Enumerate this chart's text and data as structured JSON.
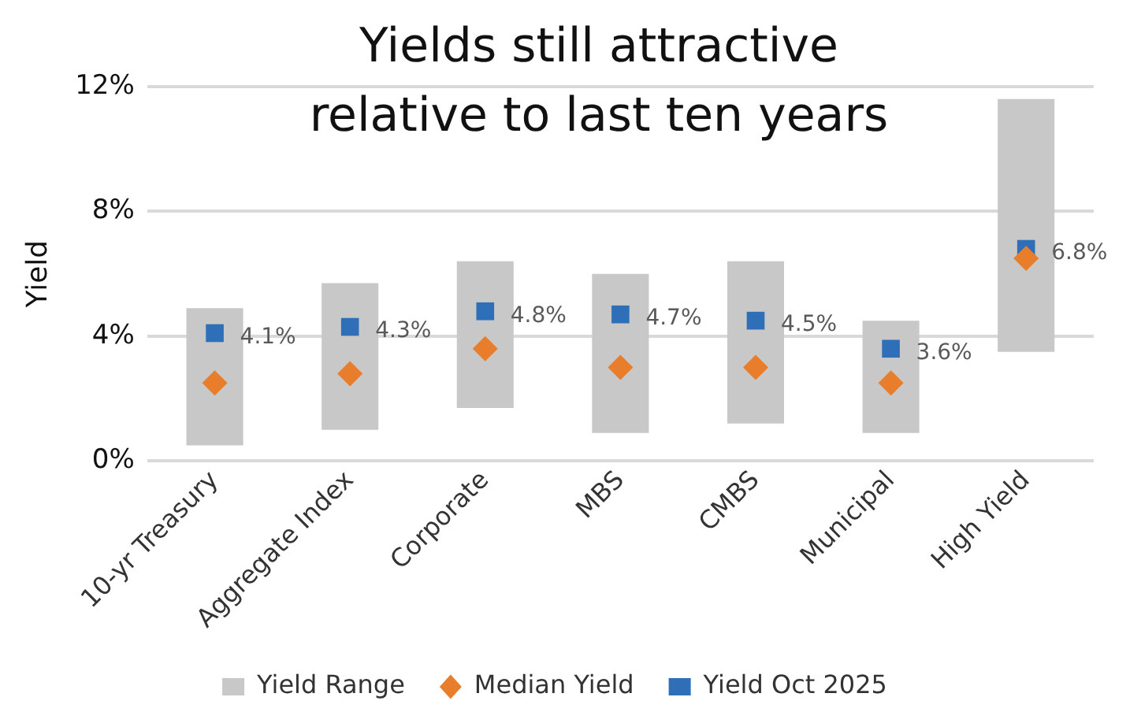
{
  "chart_data": {
    "type": "bar",
    "title": "Yields still attractive relative to last ten years",
    "ylabel": "Yield",
    "categories": [
      "10-yr Treasury",
      "Aggregate Index",
      "Corporate",
      "MBS",
      "CMBS",
      "Municipal",
      "High Yield"
    ],
    "series": [
      {
        "name": "Yield Range",
        "type": "bar",
        "color": "#c8c8c8",
        "base": [
          0.5,
          1.0,
          1.7,
          0.9,
          1.2,
          0.9,
          3.5
        ],
        "values": [
          4.4,
          4.7,
          4.7,
          5.1,
          5.2,
          3.6,
          8.1
        ]
      },
      {
        "name": "Median Yield",
        "type": "scatter",
        "marker": "diamond",
        "color": "#e87d2b",
        "x": [
          "10-yr Treasury",
          "Aggregate Index",
          "Corporate",
          "MBS",
          "CMBS",
          "Municipal",
          "High Yield"
        ],
        "values": [
          2.5,
          2.8,
          3.6,
          3.0,
          3.0,
          2.5,
          6.5
        ]
      },
      {
        "name": "Yield Oct 2025",
        "type": "scatter",
        "marker": "square",
        "color": "#2e6fb7",
        "x": [
          "10-yr Treasury",
          "Aggregate Index",
          "Corporate",
          "MBS",
          "CMBS",
          "Municipal",
          "High Yield"
        ],
        "values": [
          4.1,
          4.3,
          4.8,
          4.7,
          4.5,
          3.6,
          6.8
        ],
        "value_labels": [
          "4.1%",
          "4.3%",
          "4.8%",
          "4.7%",
          "4.5%",
          "3.6%",
          "6.8%"
        ]
      }
    ],
    "ylim": [
      0,
      12
    ],
    "yticks": [
      {
        "value": 0,
        "label": "0%"
      },
      {
        "value": 4,
        "label": "4%"
      },
      {
        "value": 8,
        "label": "8%"
      },
      {
        "value": 12,
        "label": "12%"
      }
    ],
    "grid": "y",
    "legend": "bottom"
  }
}
